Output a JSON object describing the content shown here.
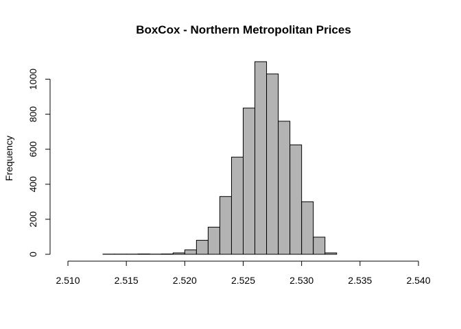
{
  "chart_data": {
    "type": "bar",
    "subtype": "histogram",
    "title": "BoxCox - Northern Metropolitan Prices",
    "xlabel": "",
    "ylabel": "Frequency",
    "xlim": [
      2.51,
      2.54
    ],
    "ylim": [
      0,
      1100
    ],
    "x_ticks": [
      2.51,
      2.515,
      2.52,
      2.525,
      2.53,
      2.535,
      2.54
    ],
    "x_tick_labels": [
      "2.510",
      "2.515",
      "2.520",
      "2.525",
      "2.530",
      "2.535",
      "2.540"
    ],
    "y_ticks": [
      0,
      200,
      400,
      600,
      800,
      1000
    ],
    "y_tick_labels": [
      "0",
      "200",
      "400",
      "600",
      "800",
      "1000"
    ],
    "bin_width": 0.001,
    "bins": [
      {
        "start": 2.513,
        "end": 2.514,
        "count": 1
      },
      {
        "start": 2.514,
        "end": 2.515,
        "count": 1
      },
      {
        "start": 2.515,
        "end": 2.516,
        "count": 1
      },
      {
        "start": 2.516,
        "end": 2.517,
        "count": 2
      },
      {
        "start": 2.517,
        "end": 2.518,
        "count": 1
      },
      {
        "start": 2.518,
        "end": 2.519,
        "count": 2
      },
      {
        "start": 2.519,
        "end": 2.52,
        "count": 8
      },
      {
        "start": 2.52,
        "end": 2.521,
        "count": 25
      },
      {
        "start": 2.521,
        "end": 2.522,
        "count": 80
      },
      {
        "start": 2.522,
        "end": 2.523,
        "count": 155
      },
      {
        "start": 2.523,
        "end": 2.524,
        "count": 330
      },
      {
        "start": 2.524,
        "end": 2.525,
        "count": 555
      },
      {
        "start": 2.525,
        "end": 2.526,
        "count": 835
      },
      {
        "start": 2.526,
        "end": 2.527,
        "count": 1100
      },
      {
        "start": 2.527,
        "end": 2.528,
        "count": 1030
      },
      {
        "start": 2.528,
        "end": 2.529,
        "count": 760
      },
      {
        "start": 2.529,
        "end": 2.53,
        "count": 625
      },
      {
        "start": 2.53,
        "end": 2.531,
        "count": 300
      },
      {
        "start": 2.531,
        "end": 2.532,
        "count": 98
      },
      {
        "start": 2.532,
        "end": 2.533,
        "count": 8
      }
    ],
    "bar_color": "#b3b3b3",
    "border_color": "#000000",
    "grid": false,
    "legend": "none"
  }
}
